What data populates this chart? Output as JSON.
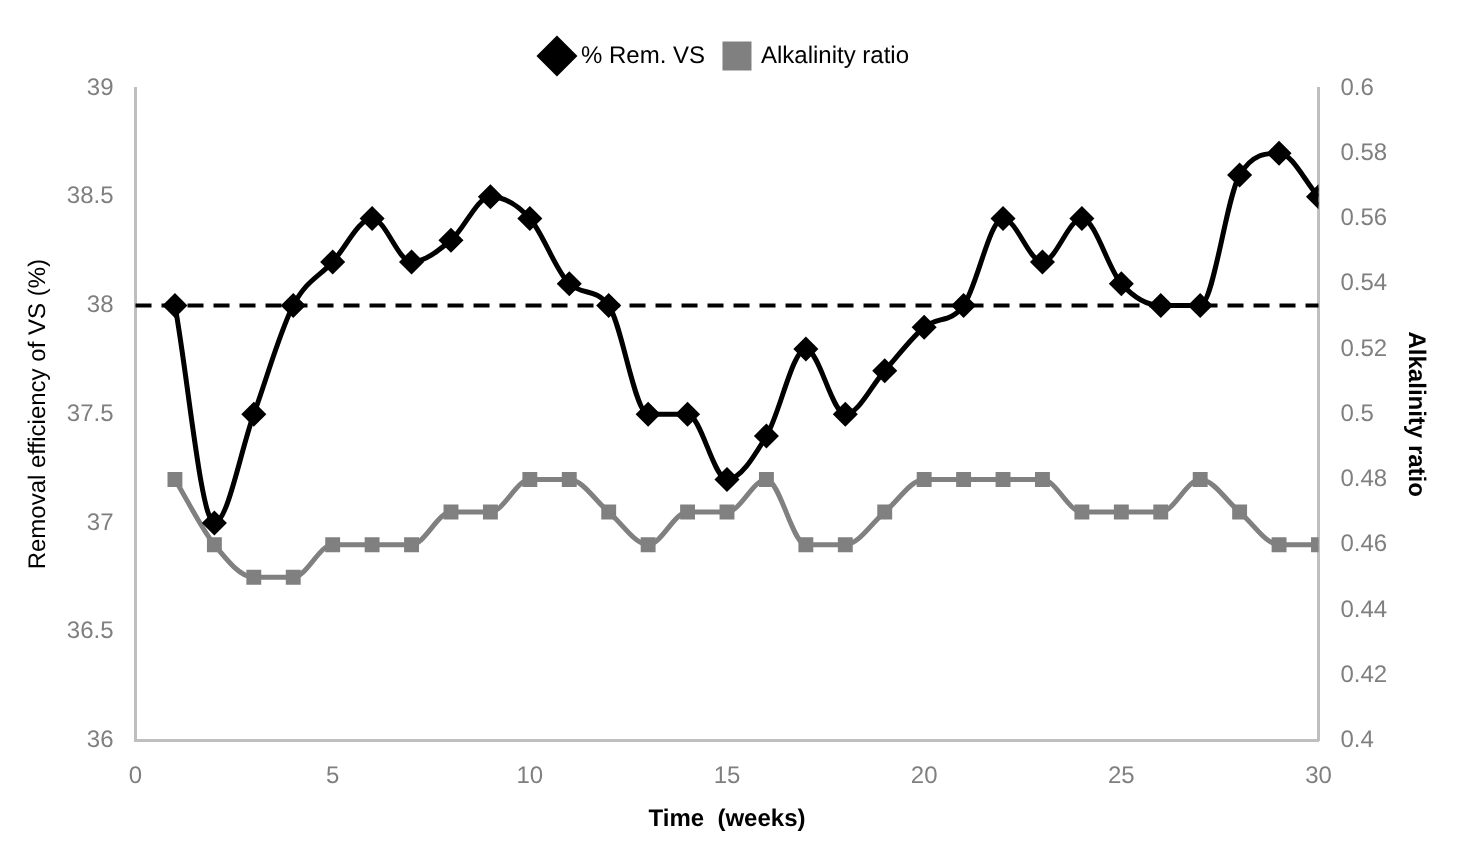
{
  "chart_data": {
    "type": "line",
    "xlabel": "Time  (weeks)",
    "ylabel": "Removal efficiency of VS (%)",
    "y2label": "Alkalinity ratio",
    "x": [
      1,
      2,
      3,
      4,
      5,
      6,
      7,
      8,
      9,
      10,
      11,
      12,
      13,
      14,
      15,
      16,
      17,
      18,
      19,
      20,
      21,
      22,
      23,
      24,
      25,
      26,
      27,
      28,
      29,
      30
    ],
    "series": [
      {
        "name": "% Rem. VS",
        "color": "#000000",
        "marker": "diamond",
        "values": [
          38.0,
          37.0,
          37.5,
          38.0,
          38.2,
          38.4,
          38.2,
          38.3,
          38.5,
          38.4,
          38.1,
          38.0,
          37.5,
          37.5,
          37.2,
          37.4,
          37.8,
          37.5,
          37.7,
          37.9,
          38.0,
          38.4,
          38.2,
          38.4,
          38.1,
          38.0,
          38.0,
          38.6,
          38.7,
          38.5
        ]
      },
      {
        "name": "Alkalinity ratio",
        "color": "#808080",
        "marker": "square",
        "axis": "y2",
        "values": [
          0.48,
          0.46,
          0.45,
          0.45,
          0.46,
          0.46,
          0.46,
          0.47,
          0.47,
          0.48,
          0.48,
          0.47,
          0.46,
          0.47,
          0.47,
          0.48,
          0.46,
          0.46,
          0.47,
          0.48,
          0.48,
          0.48,
          0.48,
          0.47,
          0.47,
          0.47,
          0.48,
          0.47,
          0.46,
          0.46
        ]
      }
    ],
    "xlim": [
      0,
      30
    ],
    "xticks": [
      0,
      5,
      10,
      15,
      20,
      25,
      30
    ],
    "ylim": [
      36,
      39
    ],
    "yticks": [
      36,
      36.5,
      37,
      37.5,
      38,
      38.5,
      39
    ],
    "y2lim": [
      0.4,
      0.6
    ],
    "y2ticks": [
      0.4,
      0.42,
      0.44,
      0.46,
      0.48,
      0.5,
      0.52,
      0.54,
      0.56,
      0.58,
      0.6
    ],
    "ref_lines": [
      {
        "axis": "y",
        "value": 38,
        "color": "#000000",
        "line_style": "dashed"
      }
    ],
    "legend": "top",
    "grid": false
  }
}
